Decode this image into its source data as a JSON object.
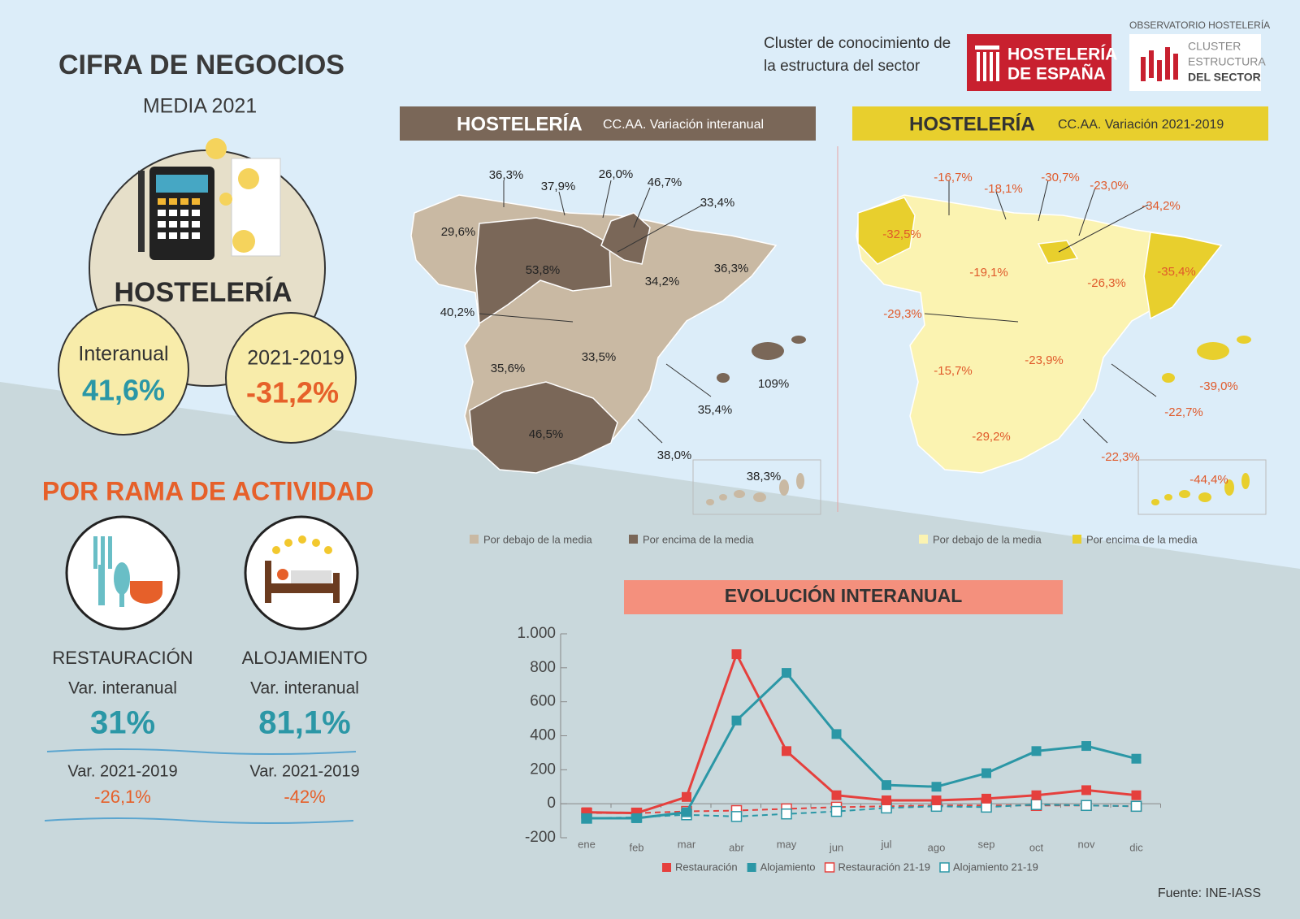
{
  "header": {
    "tagline": [
      "Cluster de conocimiento de",
      "la estructura del sector"
    ],
    "logo1": [
      "HOSTELERÍA",
      "DE ESPAÑA"
    ],
    "logo2_caption": "OBSERVATORIO HOSTELERÍA",
    "logo2": [
      "CLUSTER",
      "ESTRUCTURA",
      "DEL SECTOR"
    ]
  },
  "summary": {
    "title": "CIFRA DE NEGOCIOS",
    "subtitle": "MEDIA 2021",
    "sector": "HOSTELERÍA",
    "interanual": {
      "label": "Interanual",
      "value": "41,6%"
    },
    "vs2019": {
      "label": "2021-2019",
      "value": "-31,2%"
    }
  },
  "branches": {
    "title": "POR RAMA DE ACTIVIDAD",
    "items": [
      {
        "name": "RESTAURACIÓN",
        "interanual_label": "Var. interanual",
        "interanual": "31%",
        "vs2019_label": "Var. 2021-2019",
        "vs2019": "-26,1%"
      },
      {
        "name": "ALOJAMIENTO",
        "interanual_label": "Var. interanual",
        "interanual": "81,1%",
        "vs2019_label": "Var. 2021-2019",
        "vs2019": "-42%"
      }
    ]
  },
  "maps": [
    {
      "title": "HOSTELERÍA",
      "subtitle": "CC.AA. Variación interanual",
      "labels": [
        "36,3%",
        "37,9%",
        "26,0%",
        "46,7%",
        "33,4%",
        "29,6%",
        "53,8%",
        "34,2%",
        "36,3%",
        "40,2%",
        "33,5%",
        "35,6%",
        "109%",
        "35,4%",
        "46,5%",
        "38,0%",
        "38,3%"
      ],
      "legend": [
        "Por debajo de la media",
        "Por encima de la media"
      ]
    },
    {
      "title": "HOSTELERÍA",
      "subtitle": "CC.AA. Variación 2021-2019",
      "labels": [
        "-16,7%",
        "-18,1%",
        "-30,7%",
        "-23,0%",
        "-34,2%",
        "-32,5%",
        "-19,1%",
        "-26,3%",
        "-35,4%",
        "-29,3%",
        "-23,9%",
        "-15,7%",
        "-39,0%",
        "-22,7%",
        "-29,2%",
        "-22,3%",
        "-44,4%"
      ],
      "legend": [
        "Por debajo de la media",
        "Por encima de la media"
      ]
    }
  ],
  "chart_data": {
    "type": "line",
    "title": "EVOLUCIÓN INTERANUAL",
    "categories": [
      "ene",
      "feb",
      "mar",
      "abr",
      "may",
      "jun",
      "jul",
      "ago",
      "sep",
      "oct",
      "nov",
      "dic"
    ],
    "ylim": [
      -200,
      1000
    ],
    "yticks": [
      {
        "value": 1000,
        "label": "1.000"
      },
      800,
      600,
      400,
      200,
      0,
      -200
    ],
    "series": [
      {
        "name": "Restauración",
        "color": "#e5403d",
        "style": "solid",
        "marker": "filled",
        "values": [
          -50,
          -55,
          40,
          880,
          310,
          50,
          20,
          20,
          30,
          50,
          80,
          50
        ]
      },
      {
        "name": "Alojamiento",
        "color": "#2b97a6",
        "style": "solid",
        "marker": "filled",
        "values": [
          -85,
          -85,
          -50,
          490,
          770,
          410,
          110,
          100,
          180,
          310,
          340,
          265
        ]
      },
      {
        "name": "Restauración 21-19",
        "color": "#e5403d",
        "style": "dashed",
        "marker": "open",
        "values": [
          -55,
          -55,
          -45,
          -40,
          -30,
          -20,
          -15,
          -10,
          -10,
          -10,
          -10,
          -15
        ]
      },
      {
        "name": "Alojamiento 21-19",
        "color": "#2b97a6",
        "style": "dashed",
        "marker": "open",
        "values": [
          -85,
          -80,
          -65,
          -75,
          -60,
          -45,
          -25,
          -15,
          -20,
          -5,
          -10,
          -15
        ]
      }
    ]
  },
  "source": "Fuente: INE-IASS"
}
